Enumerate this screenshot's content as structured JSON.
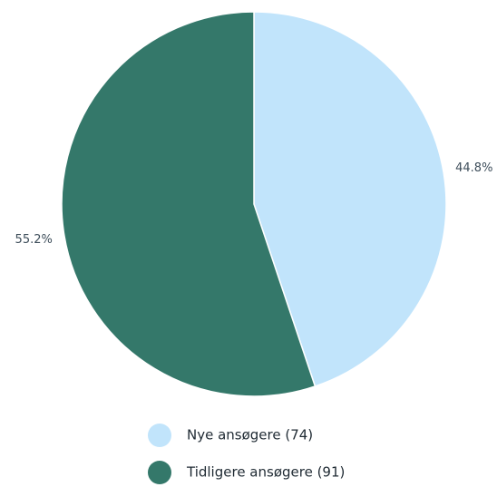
{
  "chart_data": {
    "type": "pie",
    "title": "",
    "slices": [
      {
        "label": "Nye ansøgere (74)",
        "value": 74,
        "percent_label": "44.8%",
        "color": "#c1e4fb"
      },
      {
        "label": "Tidligere ansøgere (91)",
        "value": 91,
        "percent_label": "55.2%",
        "color": "#34786a"
      }
    ],
    "start_angle_deg": 0,
    "direction": "clockwise",
    "legend_position": "bottom"
  }
}
